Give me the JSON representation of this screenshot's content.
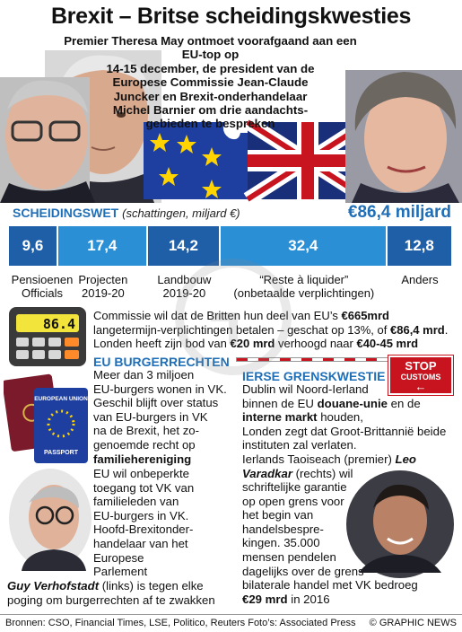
{
  "title": "Brexit – Britse scheidingskwesties",
  "subtitle_lines": [
    "Premier Theresa May ontmoet voorafgaand aan een EU-top op",
    "14-15 december, de president van de",
    "Europese Commissie Jean-Claude",
    "Juncker en Brexit-onderhandelaar",
    "Michel Barnier om drie aandachts-",
    "gebieden te bespreken"
  ],
  "divorce": {
    "heading": "SCHEIDINGSWET",
    "heading_sub": "(schattingen, miljard €)",
    "total": "€86,4 miljard",
    "segments": [
      {
        "value": 9.6,
        "label": "9,6",
        "caption": [
          "Pensioenen",
          "Officials"
        ],
        "color": "#1f5fa8"
      },
      {
        "value": 17.4,
        "label": "17,4",
        "caption": [
          "Projecten",
          "2019-20"
        ],
        "color": "#2b8fd6"
      },
      {
        "value": 14.2,
        "label": "14,2",
        "caption": [
          "Landbouw",
          "2019-20"
        ],
        "color": "#1f5fa8"
      },
      {
        "value": 32.4,
        "label": "32,4",
        "caption": [
          "“Reste à liquider”",
          "(onbetaalde verplichtingen)"
        ],
        "color": "#2b8fd6"
      },
      {
        "value": 12.8,
        "label": "12,8",
        "caption": [
          "Anders"
        ],
        "color": "#1f5fa8"
      }
    ]
  },
  "calculator_display": "86.4",
  "commission": {
    "p1": "Commissie wil dat de Britten hun deel van EU’s ",
    "b1": "€665mrd",
    "p2": " langetermijn-verplichtingen betalen – geschat op 13%, of ",
    "b2": "€86,4 mrd",
    "p3": ". Londen heeft zijn bod van ",
    "b3": "€20 mrd",
    "p4": " verhoogd naar ",
    "b4": "€40-45 mrd"
  },
  "eu_rights": {
    "heading": "EU BURGERRECHTEN",
    "lines_a": [
      "Meer dan 3 miljoen",
      "EU-burgers wonen in VK.",
      "Geschil blijft over status",
      "van EU-burgers in VK",
      "na de Brexit, het zo-",
      "genoemde recht op"
    ],
    "bold_a": "familiehereniging",
    "lines_b": [
      "EU wil onbeperkte",
      "toegang tot VK van",
      "familieleden van",
      "EU-burgers in VK.",
      "Hoofd-Brexitonder-",
      "handelaar van het",
      "Europese",
      "Parlement"
    ],
    "caption_name": "Guy Verhofstadt",
    "caption_rest": " (links) is tegen elke",
    "caption_line2": "poging om burgerrechten af te zwakken",
    "passport_top": "EUROPEAN UNION",
    "passport_bottom": "PASSPORT"
  },
  "irish": {
    "heading": "IERSE GRENSKWESTIE",
    "l1": "Dublin wil Noord-Ierland",
    "l2a": "binnen de EU ",
    "l2b": "douane-unie",
    "l2c": " en de",
    "l3b": "interne markt",
    "l3c": " houden,",
    "l4": "Londen zegt dat Groot-Brittannië beide",
    "l5": "instituten zal verlaten.",
    "l6a": "Ierlands Taoiseach (premier) ",
    "l6b": "Leo",
    "l7b": "Varadkar",
    "l7c": " (rechts) wil",
    "lines_rest": [
      "schriftelijke garantie",
      "op open grens voor",
      "het begin van",
      "handelsbespre-",
      "kingen. 35.000",
      "mensen pendelen",
      "dagelijks over de grens –",
      "bilaterale handel met VK bedroeg"
    ],
    "last_b": "€29 mrd",
    "last_c": " in 2016"
  },
  "stop_sign": {
    "line1": "STOP",
    "line2": "CUSTOMS"
  },
  "footer": {
    "sources": "Bronnen: CSO, Financial Times, LSE, Politico, Reuters  Foto’s: Associated Press",
    "copyright": "© GRAPHIC NEWS"
  },
  "colors": {
    "accent": "#1f6fb8",
    "eu_blue": "#1e3fa0",
    "stop_red": "#c8141e",
    "star": "#ffd400"
  }
}
